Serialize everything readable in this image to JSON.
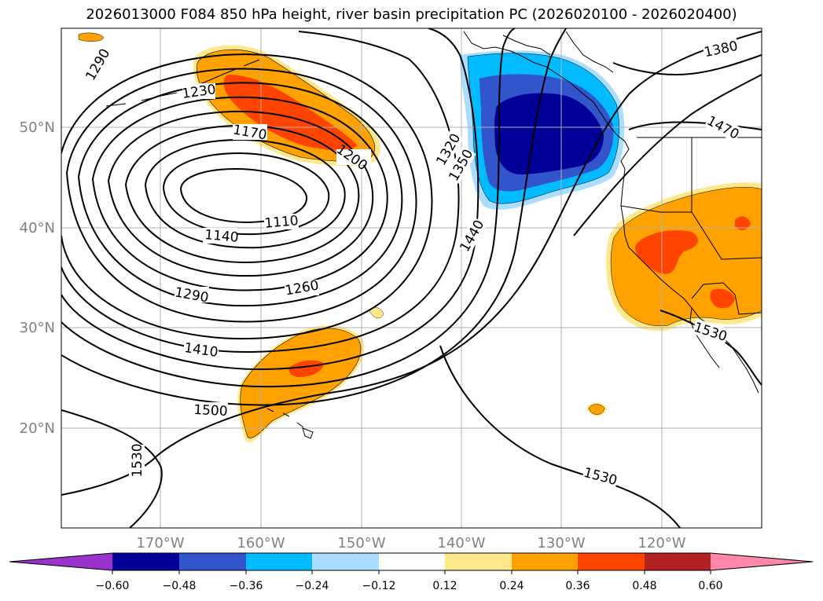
{
  "title": "2026013000 F084 850 hPa height, river basin precipitation PC (2026020100 - 2026020400)",
  "map": {
    "lat_labels": [
      "20°N",
      "30°N",
      "40°N",
      "50°N"
    ],
    "lon_labels": [
      "170°W",
      "160°W",
      "150°W",
      "140°W",
      "130°W",
      "120°W"
    ],
    "contour_labels": [
      "1290",
      "1230",
      "1170",
      "1200",
      "1110",
      "1140",
      "1290",
      "1260",
      "1410",
      "1500",
      "1530",
      "1320",
      "1350",
      "1440",
      "1380",
      "1470",
      "1530",
      "1530"
    ]
  },
  "colorbar": {
    "ticks": [
      "−0.60",
      "−0.48",
      "−0.36",
      "−0.24",
      "−0.12",
      "0.12",
      "0.24",
      "0.36",
      "0.48",
      "0.60"
    ],
    "colors": [
      "#9933cc",
      "#000099",
      "#3355cc",
      "#00bbff",
      "#aaddff",
      "#ffffff",
      "#ffe88a",
      "#ffa200",
      "#ff4400",
      "#b22222",
      "#ff88aa"
    ]
  },
  "colors": {
    "dark_blue": "#000099",
    "mid_blue": "#3355cc",
    "cyan": "#00bbff",
    "light_blue": "#aaddff",
    "light_yellow": "#ffe88a",
    "orange": "#ffa200",
    "red_orange": "#ff4400"
  }
}
